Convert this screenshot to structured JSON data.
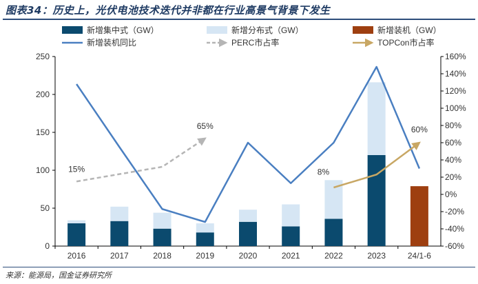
{
  "header": {
    "title": "图表34：历史上，光伏电池技术迭代并非都在行业高景气背景下发生"
  },
  "footer": {
    "source": "来源：能源局，国金证券研究所"
  },
  "chart_data": {
    "type": "bar",
    "categories": [
      "2016",
      "2017",
      "2018",
      "2019",
      "2020",
      "2021",
      "2022",
      "2023",
      "24/1-6"
    ],
    "series": [
      {
        "name": "新增集中式（GW）",
        "kind": "stacked-bar",
        "axis": "left",
        "color": "#0b4a6e",
        "values": [
          30,
          33,
          23,
          18,
          32,
          26,
          36,
          120,
          null
        ]
      },
      {
        "name": "新增分布式（GW）",
        "kind": "stacked-bar",
        "axis": "left",
        "color": "#d6e6f4",
        "values": [
          4,
          19,
          21,
          12,
          16,
          29,
          51,
          96,
          null
        ]
      },
      {
        "name": "新增装机（GW）",
        "kind": "bar",
        "axis": "left",
        "color": "#9e3f10",
        "values": [
          null,
          null,
          null,
          null,
          null,
          null,
          null,
          null,
          79
        ]
      },
      {
        "name": "新增装机同比",
        "kind": "line",
        "axis": "right",
        "color": "#4a7fc1",
        "values": [
          128,
          55,
          -17,
          -32,
          60,
          13,
          60,
          148,
          30
        ]
      },
      {
        "name": "PERC市占率",
        "kind": "dashed-arrow",
        "axis": "right",
        "color": "#b5b5b5",
        "points": [
          [
            "2016",
            15
          ],
          [
            "2018",
            32
          ],
          [
            "2019",
            65
          ]
        ],
        "labels": [
          {
            "at": "2016",
            "text": "15%"
          },
          {
            "at": "2019",
            "text": "65%"
          }
        ]
      },
      {
        "name": "TOPCon市占率",
        "kind": "arrow",
        "axis": "right",
        "color": "#c8a764",
        "points": [
          [
            "2022",
            8
          ],
          [
            "2023",
            23
          ],
          [
            "24/1-6",
            60
          ]
        ],
        "labels": [
          {
            "at": "2022",
            "text": "8%"
          },
          {
            "at": "24/1-6",
            "text": "60%"
          }
        ]
      }
    ],
    "ylim_left": [
      0,
      250
    ],
    "yticks_left": [
      0,
      50,
      100,
      150,
      200,
      250
    ],
    "ylim_right": [
      -60,
      160
    ],
    "yticks_right": [
      "-60%",
      "-40%",
      "-20%",
      "0%",
      "20%",
      "40%",
      "60%",
      "80%",
      "100%",
      "120%",
      "140%",
      "160%"
    ],
    "grid": false,
    "legend": "top"
  }
}
